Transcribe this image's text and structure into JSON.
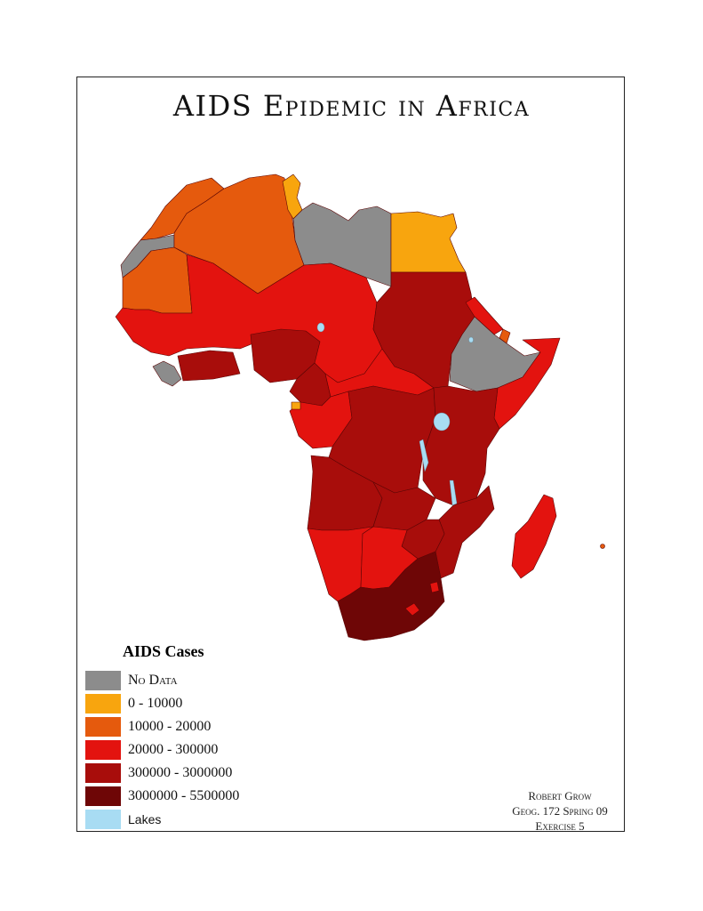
{
  "title": "AIDS Epidemic in Africa",
  "colors": {
    "no_data": "#8c8c8c",
    "c0_10000": "#f8a50e",
    "c10000_20000": "#e55a0d",
    "c20000_300000": "#e3130f",
    "c300000_3000000": "#a80d0b",
    "c3000000_5500000": "#6e0606",
    "lakes": "#a8dcf3"
  },
  "legend": {
    "title": "AIDS Cases",
    "items": [
      {
        "label": "No Data",
        "color": "#8c8c8c"
      },
      {
        "label": "0 - 10000",
        "color": "#f8a50e"
      },
      {
        "label": "10000 - 20000",
        "color": "#e55a0d"
      },
      {
        "label": "20000 - 300000",
        "color": "#e3130f"
      },
      {
        "label": "300000 - 3000000",
        "color": "#a80d0b"
      },
      {
        "label": "3000000 - 5500000",
        "color": "#6e0606"
      },
      {
        "label": "Lakes",
        "color": "#a8dcf3"
      }
    ]
  },
  "credits": {
    "line1": "Robert Grow",
    "line2": "Geog. 172 Spring 09",
    "line3": "Exercise 5"
  }
}
